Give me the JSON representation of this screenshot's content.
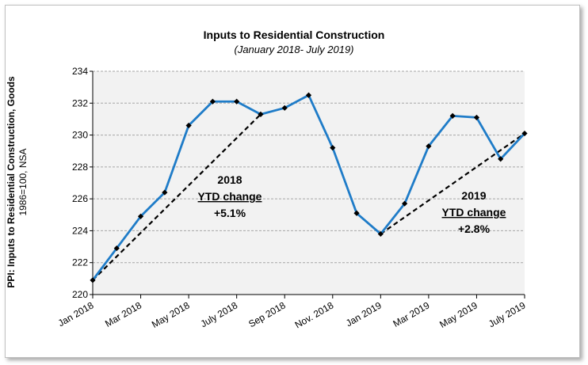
{
  "chart_data": {
    "type": "line",
    "title": "Inputs to Residential Construction",
    "subtitle": "(January 2018- July 2019)",
    "ylabel": "PPI: Inputs to Residential Construction, Goods",
    "ylabel_sub": "1986=100, NSA",
    "ylim": [
      220,
      234
    ],
    "yticks": [
      220,
      222,
      224,
      226,
      228,
      230,
      232,
      234
    ],
    "grid": true,
    "x": [
      "Jan 2018",
      "Feb 2018",
      "Mar 2018",
      "Apr 2018",
      "May 2018",
      "Jun 2018",
      "July 2018",
      "Aug 2018",
      "Sep 2018",
      "Oct 2018",
      "Nov. 2018",
      "Dec 2018",
      "Jan 2019",
      "Feb 2019",
      "Mar 2019",
      "Apr 2019",
      "May 2019",
      "Jun 2019",
      "July 2019"
    ],
    "xtick_labels": [
      "Jan 2018",
      "Mar 2018",
      "May 2018",
      "July 2018",
      "Sep 2018",
      "Nov. 2018",
      "Jan 2019",
      "Mar 2019",
      "May 2019",
      "July 2019"
    ],
    "series": [
      {
        "values": [
          220.9,
          222.9,
          224.9,
          226.4,
          230.6,
          232.1,
          232.1,
          231.3,
          231.7,
          232.5,
          229.2,
          225.1,
          223.8,
          225.7,
          229.3,
          231.2,
          231.1,
          228.5,
          230.1
        ],
        "color": "#1f7cc8"
      }
    ],
    "trendlines": [
      {
        "from": [
          "Jan 2018",
          220.9
        ],
        "to": [
          "Aug 2018",
          231.3
        ]
      },
      {
        "from": [
          "Jan 2019",
          223.8
        ],
        "to": [
          "July 2019",
          230.1
        ]
      }
    ],
    "annotations": [
      {
        "year": "2018",
        "label": "YTD change",
        "value": "+5.1%"
      },
      {
        "year": "2019",
        "label": "YTD change",
        "value": "+2.8%"
      }
    ]
  }
}
